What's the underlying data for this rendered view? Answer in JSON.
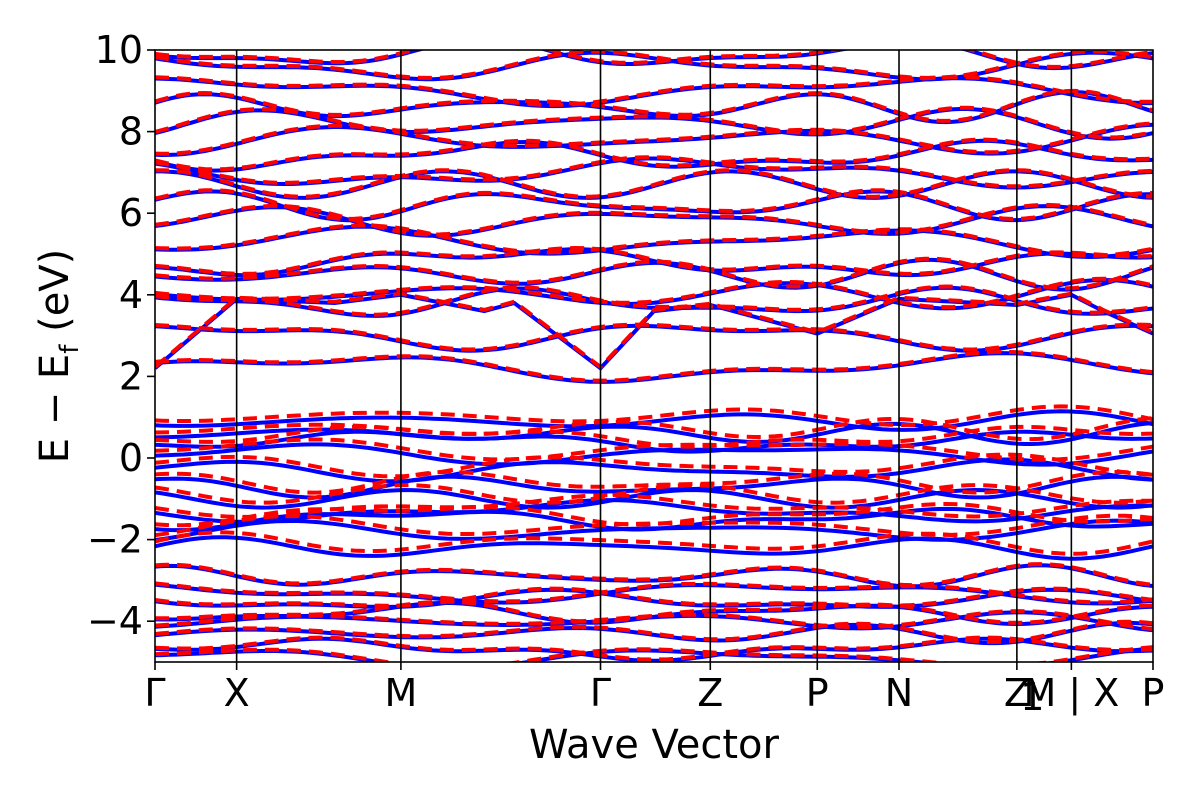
{
  "chart_data": {
    "type": "line",
    "xlabel": "Wave Vector",
    "ylabel_main": "E − E",
    "ylabel_sub": "f",
    "ylabel_unit": " (eV)",
    "ylim": [
      -5,
      10
    ],
    "yticks": [
      -4,
      -2,
      0,
      2,
      4,
      6,
      8,
      10
    ],
    "ytick_labels": [
      "−4",
      "−2",
      "0",
      "2",
      "4",
      "6",
      "8",
      "10"
    ],
    "kpath": [
      {
        "label": "Γ",
        "pos": 0.0
      },
      {
        "label": "X",
        "pos": 0.0818
      },
      {
        "label": "M",
        "pos": 0.2464
      },
      {
        "label": "Γ",
        "pos": 0.4464
      },
      {
        "label": "Z",
        "pos": 0.5564
      },
      {
        "label": "P",
        "pos": 0.6636
      },
      {
        "label": "N",
        "pos": 0.7455
      },
      {
        "label": "Z",
        "pos": 0.8636
      },
      {
        "label": "1",
        "pos": 0.8791
      },
      {
        "label": "M | X",
        "pos": 0.9182
      },
      {
        "label": "P",
        "pos": 1.0
      }
    ],
    "vlines": [
      0.0818,
      0.2464,
      0.4464,
      0.5564,
      0.6636,
      0.7455,
      0.8636,
      0.9182
    ],
    "series_styles": [
      {
        "color": "#0000ff",
        "dash": "solid",
        "width": 4
      },
      {
        "color": "#ff0000",
        "dash": "dashed",
        "width": 4
      }
    ],
    "band_groups": {
      "conduction_approx_levels_eV": [
        2.2,
        3.0,
        3.8,
        4.0,
        4.5,
        4.8,
        5.3,
        5.8,
        6.2,
        6.7,
        7.0,
        7.4,
        7.8,
        8.2,
        8.6,
        9.0,
        9.6,
        9.9
      ],
      "valence_top_approx_levels_eV": [
        0.9,
        0.6,
        0.4,
        0.1,
        -0.3,
        -0.7,
        -1.0,
        -1.3,
        -1.5,
        -1.8,
        -2.2
      ],
      "valence_low_approx_levels_eV": [
        -2.9,
        -3.3,
        -3.5,
        -3.8,
        -4.0,
        -4.3,
        -4.7,
        -4.9
      ]
    }
  }
}
